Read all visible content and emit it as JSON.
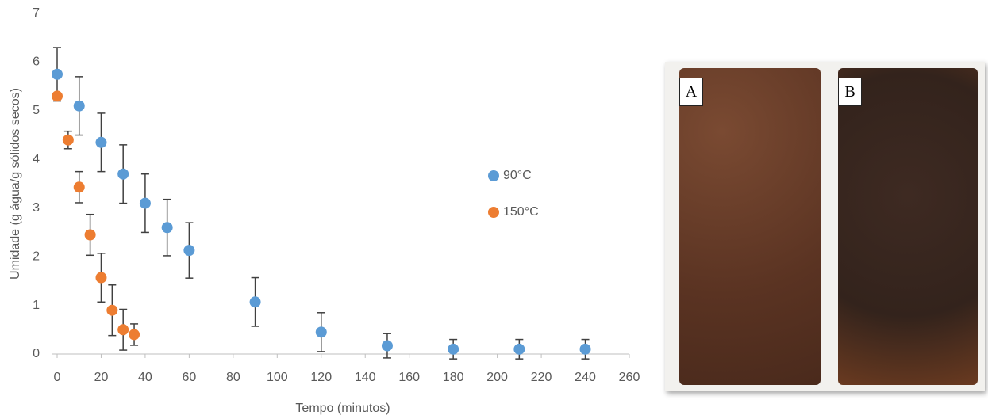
{
  "chart_data": {
    "type": "scatter",
    "xlabel": "Tempo (minutos)",
    "ylabel": "Umidade (g água/g sólidos secos)",
    "xlim": [
      0,
      260
    ],
    "xticks": [
      0,
      20,
      40,
      60,
      80,
      100,
      120,
      140,
      160,
      180,
      200,
      220,
      240,
      260
    ],
    "ylim": [
      0,
      7
    ],
    "yticks": [
      0,
      1,
      2,
      3,
      4,
      5,
      6,
      7
    ],
    "grid": false,
    "legend": "right",
    "series": [
      {
        "name": "90°C",
        "color": "#5b9bd5",
        "x": [
          0,
          10,
          20,
          30,
          40,
          50,
          60,
          90,
          120,
          150,
          180,
          210,
          240
        ],
        "values": [
          5.75,
          5.1,
          4.35,
          3.7,
          3.1,
          2.6,
          2.13,
          1.07,
          0.45,
          0.17,
          0.1,
          0.1,
          0.1
        ],
        "errors": [
          0.55,
          0.6,
          0.6,
          0.6,
          0.6,
          0.58,
          0.57,
          0.5,
          0.4,
          0.25,
          0.2,
          0.2,
          0.2
        ]
      },
      {
        "name": "150°C",
        "color": "#ed7d31",
        "x": [
          0,
          5,
          10,
          15,
          20,
          25,
          30,
          35
        ],
        "values": [
          5.3,
          4.4,
          3.43,
          2.45,
          1.57,
          0.9,
          0.5,
          0.4
        ],
        "errors": [
          0,
          0.18,
          0.32,
          0.42,
          0.5,
          0.52,
          0.42,
          0.22
        ]
      }
    ]
  },
  "photo": {
    "labels": [
      "A",
      "B"
    ]
  }
}
